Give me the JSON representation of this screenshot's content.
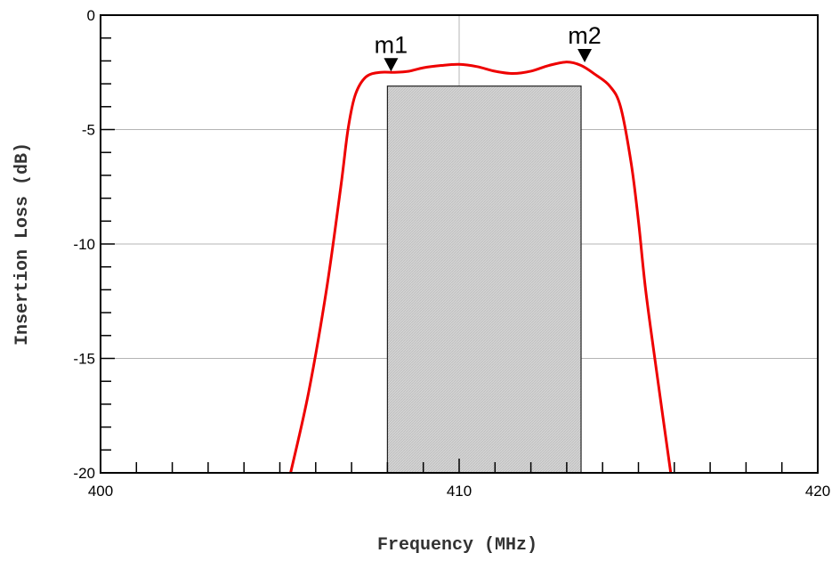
{
  "chart_data": {
    "type": "line",
    "title": "",
    "xlabel": "Frequency (MHz)",
    "ylabel": "Insertion Loss (dB)",
    "xlim": [
      400,
      420
    ],
    "ylim": [
      -20,
      0
    ],
    "x_ticks": [
      "400",
      "410",
      "420"
    ],
    "y_ticks": [
      "0",
      "-5",
      "-10",
      "-15",
      "-20"
    ],
    "grid": true,
    "series": [
      {
        "color": "#ee0000",
        "x": [
          405.3,
          405.8,
          406.3,
          406.7,
          406.9,
          407.1,
          407.4,
          407.8,
          408.2,
          408.6,
          409.0,
          409.5,
          410.0,
          410.5,
          411.0,
          411.5,
          412.0,
          412.5,
          413.0,
          413.4,
          413.8,
          414.2,
          414.5,
          414.8,
          415.0,
          415.2,
          415.5,
          415.9
        ],
        "y": [
          -20.0,
          -16.5,
          -12.0,
          -7.5,
          -5.0,
          -3.5,
          -2.7,
          -2.5,
          -2.5,
          -2.45,
          -2.3,
          -2.2,
          -2.15,
          -2.25,
          -2.45,
          -2.55,
          -2.45,
          -2.2,
          -2.05,
          -2.2,
          -2.6,
          -3.1,
          -4.0,
          -6.5,
          -9.0,
          -12.0,
          -15.5,
          -20.0
        ]
      }
    ],
    "shaded_region": {
      "x": [
        408.0,
        413.4
      ],
      "y": [
        -20,
        -3.1
      ],
      "color": "#d4d4d4"
    },
    "markers": [
      {
        "label": "m1",
        "x": 408.1,
        "y": -2.5
      },
      {
        "label": "m2",
        "x": 413.5,
        "y": -2.1
      }
    ]
  }
}
